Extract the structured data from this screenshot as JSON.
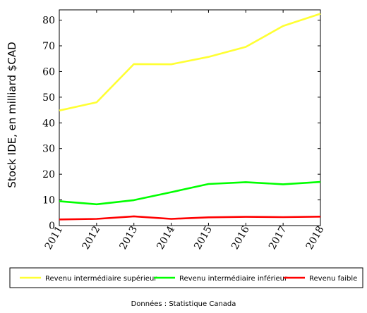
{
  "chart_data": {
    "type": "line",
    "x": [
      2011,
      2012,
      2013,
      2014,
      2015,
      2016,
      2017,
      2018
    ],
    "xticks": [
      "2011",
      "2012",
      "2013",
      "2014",
      "2015",
      "2016",
      "2017",
      "2018"
    ],
    "yticks": [
      0,
      10,
      20,
      30,
      40,
      50,
      60,
      70,
      80
    ],
    "xlim": [
      2011,
      2018
    ],
    "ylim": [
      0,
      84
    ],
    "xlabel": "",
    "ylabel": "Stock IDE, en milliard $CAD",
    "grid": false,
    "legend_position": "bottom",
    "series": [
      {
        "name": "Revenu intermédiaire supérieur",
        "color": "#ffff33",
        "values": [
          44.8,
          48.0,
          62.9,
          62.8,
          65.7,
          69.6,
          77.7,
          82.5
        ]
      },
      {
        "name": "Revenu intermédiaire inférieur",
        "color": "#00ff00",
        "values": [
          9.5,
          8.3,
          9.9,
          13.0,
          16.2,
          16.9,
          16.1,
          17.0
        ]
      },
      {
        "name": "Revenu faible",
        "color": "#ff0000",
        "values": [
          2.4,
          2.6,
          3.6,
          2.6,
          3.2,
          3.4,
          3.3,
          3.5
        ]
      }
    ]
  },
  "source": "Données : Statistique Canada"
}
